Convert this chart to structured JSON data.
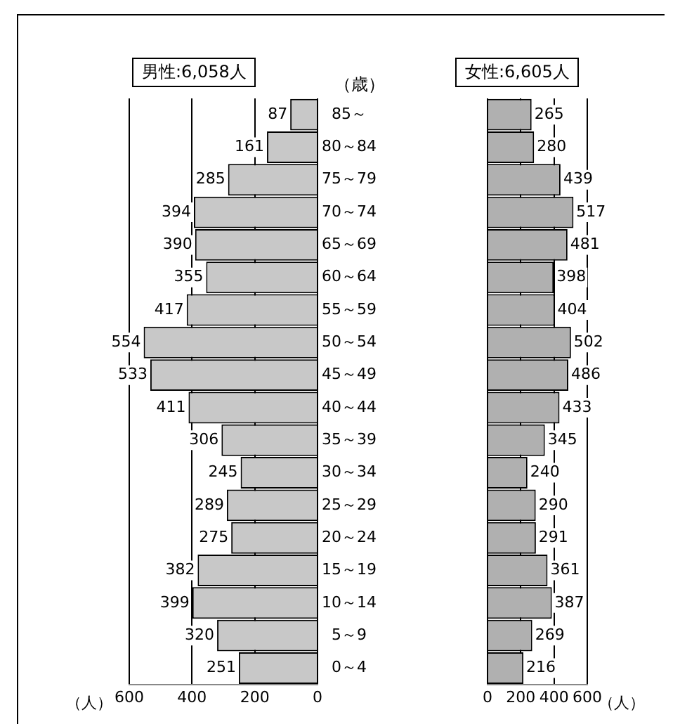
{
  "chart_data": [
    {
      "type": "bar",
      "orientation": "horizontal",
      "categories": [
        "85～",
        "80～84",
        "75～79",
        "70～74",
        "65～69",
        "60～64",
        "55～59",
        "50～54",
        "45～49",
        "40～44",
        "35～39",
        "30～34",
        "25～29",
        "20～24",
        "15～19",
        "10～14",
        "5～9",
        "0～4"
      ],
      "values": [
        87,
        161,
        285,
        394,
        390,
        355,
        417,
        554,
        533,
        411,
        306,
        245,
        289,
        275,
        382,
        399,
        320,
        251
      ],
      "color": "#c8c8c8",
      "xlim": [
        600,
        0
      ],
      "xticks": [
        0,
        200,
        400,
        600
      ],
      "grid": "x",
      "data_labels": true,
      "xlabel": "（人）",
      "ylabel": "（歳）",
      "annotations": [
        "男性:6,058人"
      ]
    },
    {
      "type": "bar",
      "orientation": "horizontal",
      "values": [
        265,
        280,
        439,
        517,
        481,
        398,
        404,
        502,
        486,
        433,
        345,
        240,
        290,
        291,
        361,
        387,
        269,
        216
      ],
      "color": "#b0b0b0",
      "xlim": [
        0,
        600
      ],
      "xticks": [
        0,
        200,
        400,
        600
      ],
      "grid": "x",
      "data_labels": true,
      "xlabel": "（人）",
      "annotations": [
        "女性:6,605人"
      ]
    }
  ]
}
